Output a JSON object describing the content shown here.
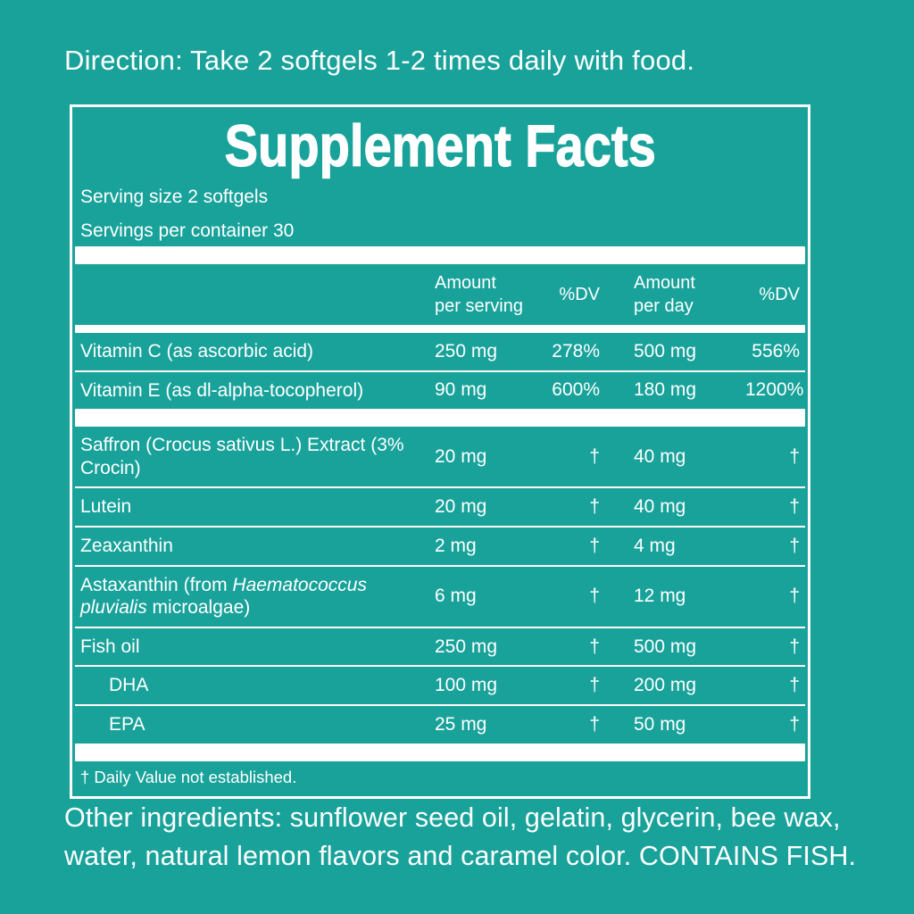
{
  "colors": {
    "background": "#18a29a",
    "text": "#ffffff"
  },
  "direction": {
    "text": "Direction: Take 2 softgels 1-2 times daily with food."
  },
  "supplement_facts": {
    "title": "Supplement Facts",
    "serving_size": "Serving size 2 softgels",
    "servings_per_container": "Servings per container 30",
    "table": {
      "header": {
        "amount_per_serving": "Amount per serving",
        "dv_serving": "%DV",
        "amount_per_day": "Amount per day",
        "dv_day": "%DV"
      },
      "sections": [
        {
          "rows": [
            {
              "name": [
                {
                  "text": "Vitamin C (as ascorbic acid)"
                }
              ],
              "aps": "250 mg",
              "dv1": "278%",
              "apd": "500 mg",
              "dv2": "556%",
              "indent": false
            },
            {
              "name": [
                {
                  "text": "Vitamin E (as dl-alpha-tocopherol)"
                }
              ],
              "aps": "90 mg",
              "dv1": "600%",
              "apd": "180 mg",
              "dv2": "1200%",
              "indent": false
            }
          ]
        },
        {
          "rows": [
            {
              "name": [
                {
                  "text": "Saffron (Crocus sativus L.) Extract (3% Crocin)"
                }
              ],
              "aps": "20 mg",
              "dv1": "†",
              "apd": "40 mg",
              "dv2": "†",
              "indent": false
            },
            {
              "name": [
                {
                  "text": "Lutein"
                }
              ],
              "aps": "20 mg",
              "dv1": "†",
              "apd": "40 mg",
              "dv2": "†",
              "indent": false
            },
            {
              "name": [
                {
                  "text": "Zeaxanthin"
                }
              ],
              "aps": "2 mg",
              "dv1": "†",
              "apd": "4 mg",
              "dv2": "†",
              "indent": false
            },
            {
              "name": [
                {
                  "text": "Astaxanthin (from "
                },
                {
                  "text": "Haematococcus pluvialis",
                  "italic": true
                },
                {
                  "text": " microalgae)"
                }
              ],
              "aps": "6 mg",
              "dv1": "†",
              "apd": "12 mg",
              "dv2": "†",
              "indent": false
            },
            {
              "name": [
                {
                  "text": "Fish oil"
                }
              ],
              "aps": "250 mg",
              "dv1": "†",
              "apd": "500 mg",
              "dv2": "†",
              "indent": false
            },
            {
              "name": [
                {
                  "text": "DHA"
                }
              ],
              "aps": "100 mg",
              "dv1": "†",
              "apd": "200 mg",
              "dv2": "†",
              "indent": true
            },
            {
              "name": [
                {
                  "text": "EPA"
                }
              ],
              "aps": "25 mg",
              "dv1": "†",
              "apd": "50 mg",
              "dv2": "†",
              "indent": true
            }
          ]
        }
      ]
    },
    "footnote": "† Daily Value not established."
  },
  "other_ingredients": {
    "text": "Other ingredients: sunflower seed oil, gelatin, glycerin, bee wax, water, natural lemon flavors and caramel color. CONTAINS FISH."
  }
}
